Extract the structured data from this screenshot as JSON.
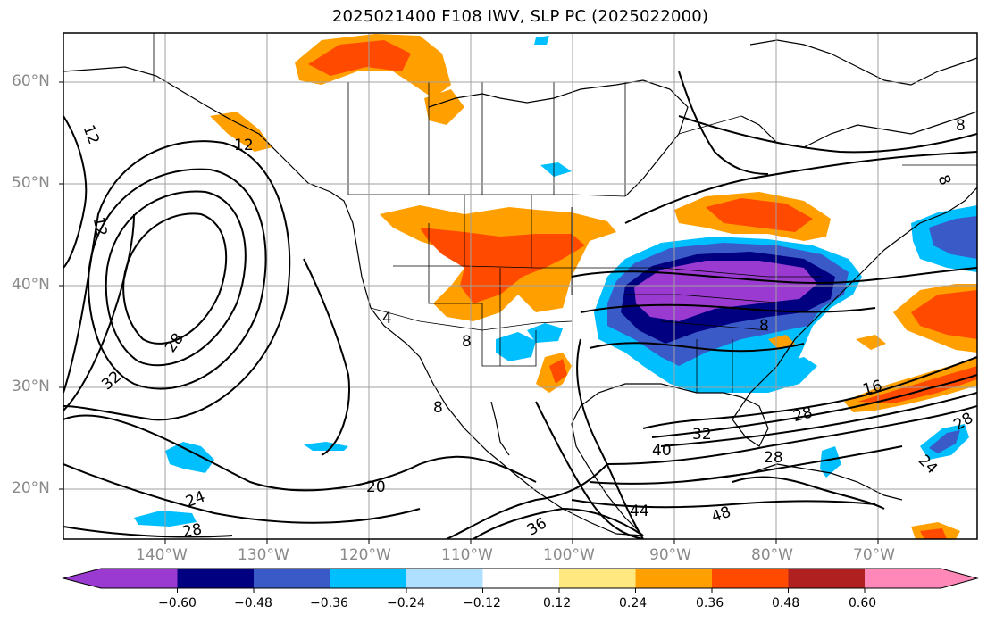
{
  "title": "2025021400 F108 IWV, SLP PC (2025022000)",
  "map": {
    "lat_ticks": [
      "60°N",
      "50°N",
      "40°N",
      "30°N",
      "20°N"
    ],
    "lon_ticks": [
      "140°W",
      "130°W",
      "120°W",
      "110°W",
      "100°W",
      "90°W",
      "80°W",
      "70°W"
    ],
    "contour_labels": [
      "12",
      "12",
      "12",
      "28",
      "32",
      "24",
      "28",
      "20",
      "36",
      "40",
      "44",
      "48",
      "32",
      "28",
      "16",
      "28",
      "24",
      "28",
      "8",
      "8",
      "8",
      "4",
      "8",
      "8"
    ]
  },
  "colorbar": {
    "ticks": [
      "−0.60",
      "−0.48",
      "−0.36",
      "−0.24",
      "−0.12",
      "0.12",
      "0.24",
      "0.36",
      "0.48",
      "0.60"
    ],
    "colors": [
      "#9a3ad0",
      "#000080",
      "#3a5ac8",
      "#00bfff",
      "#b0e0ff",
      "#ffffff",
      "#ffe880",
      "#ffa000",
      "#ff4a00",
      "#b02020",
      "#ff88b8"
    ]
  }
}
